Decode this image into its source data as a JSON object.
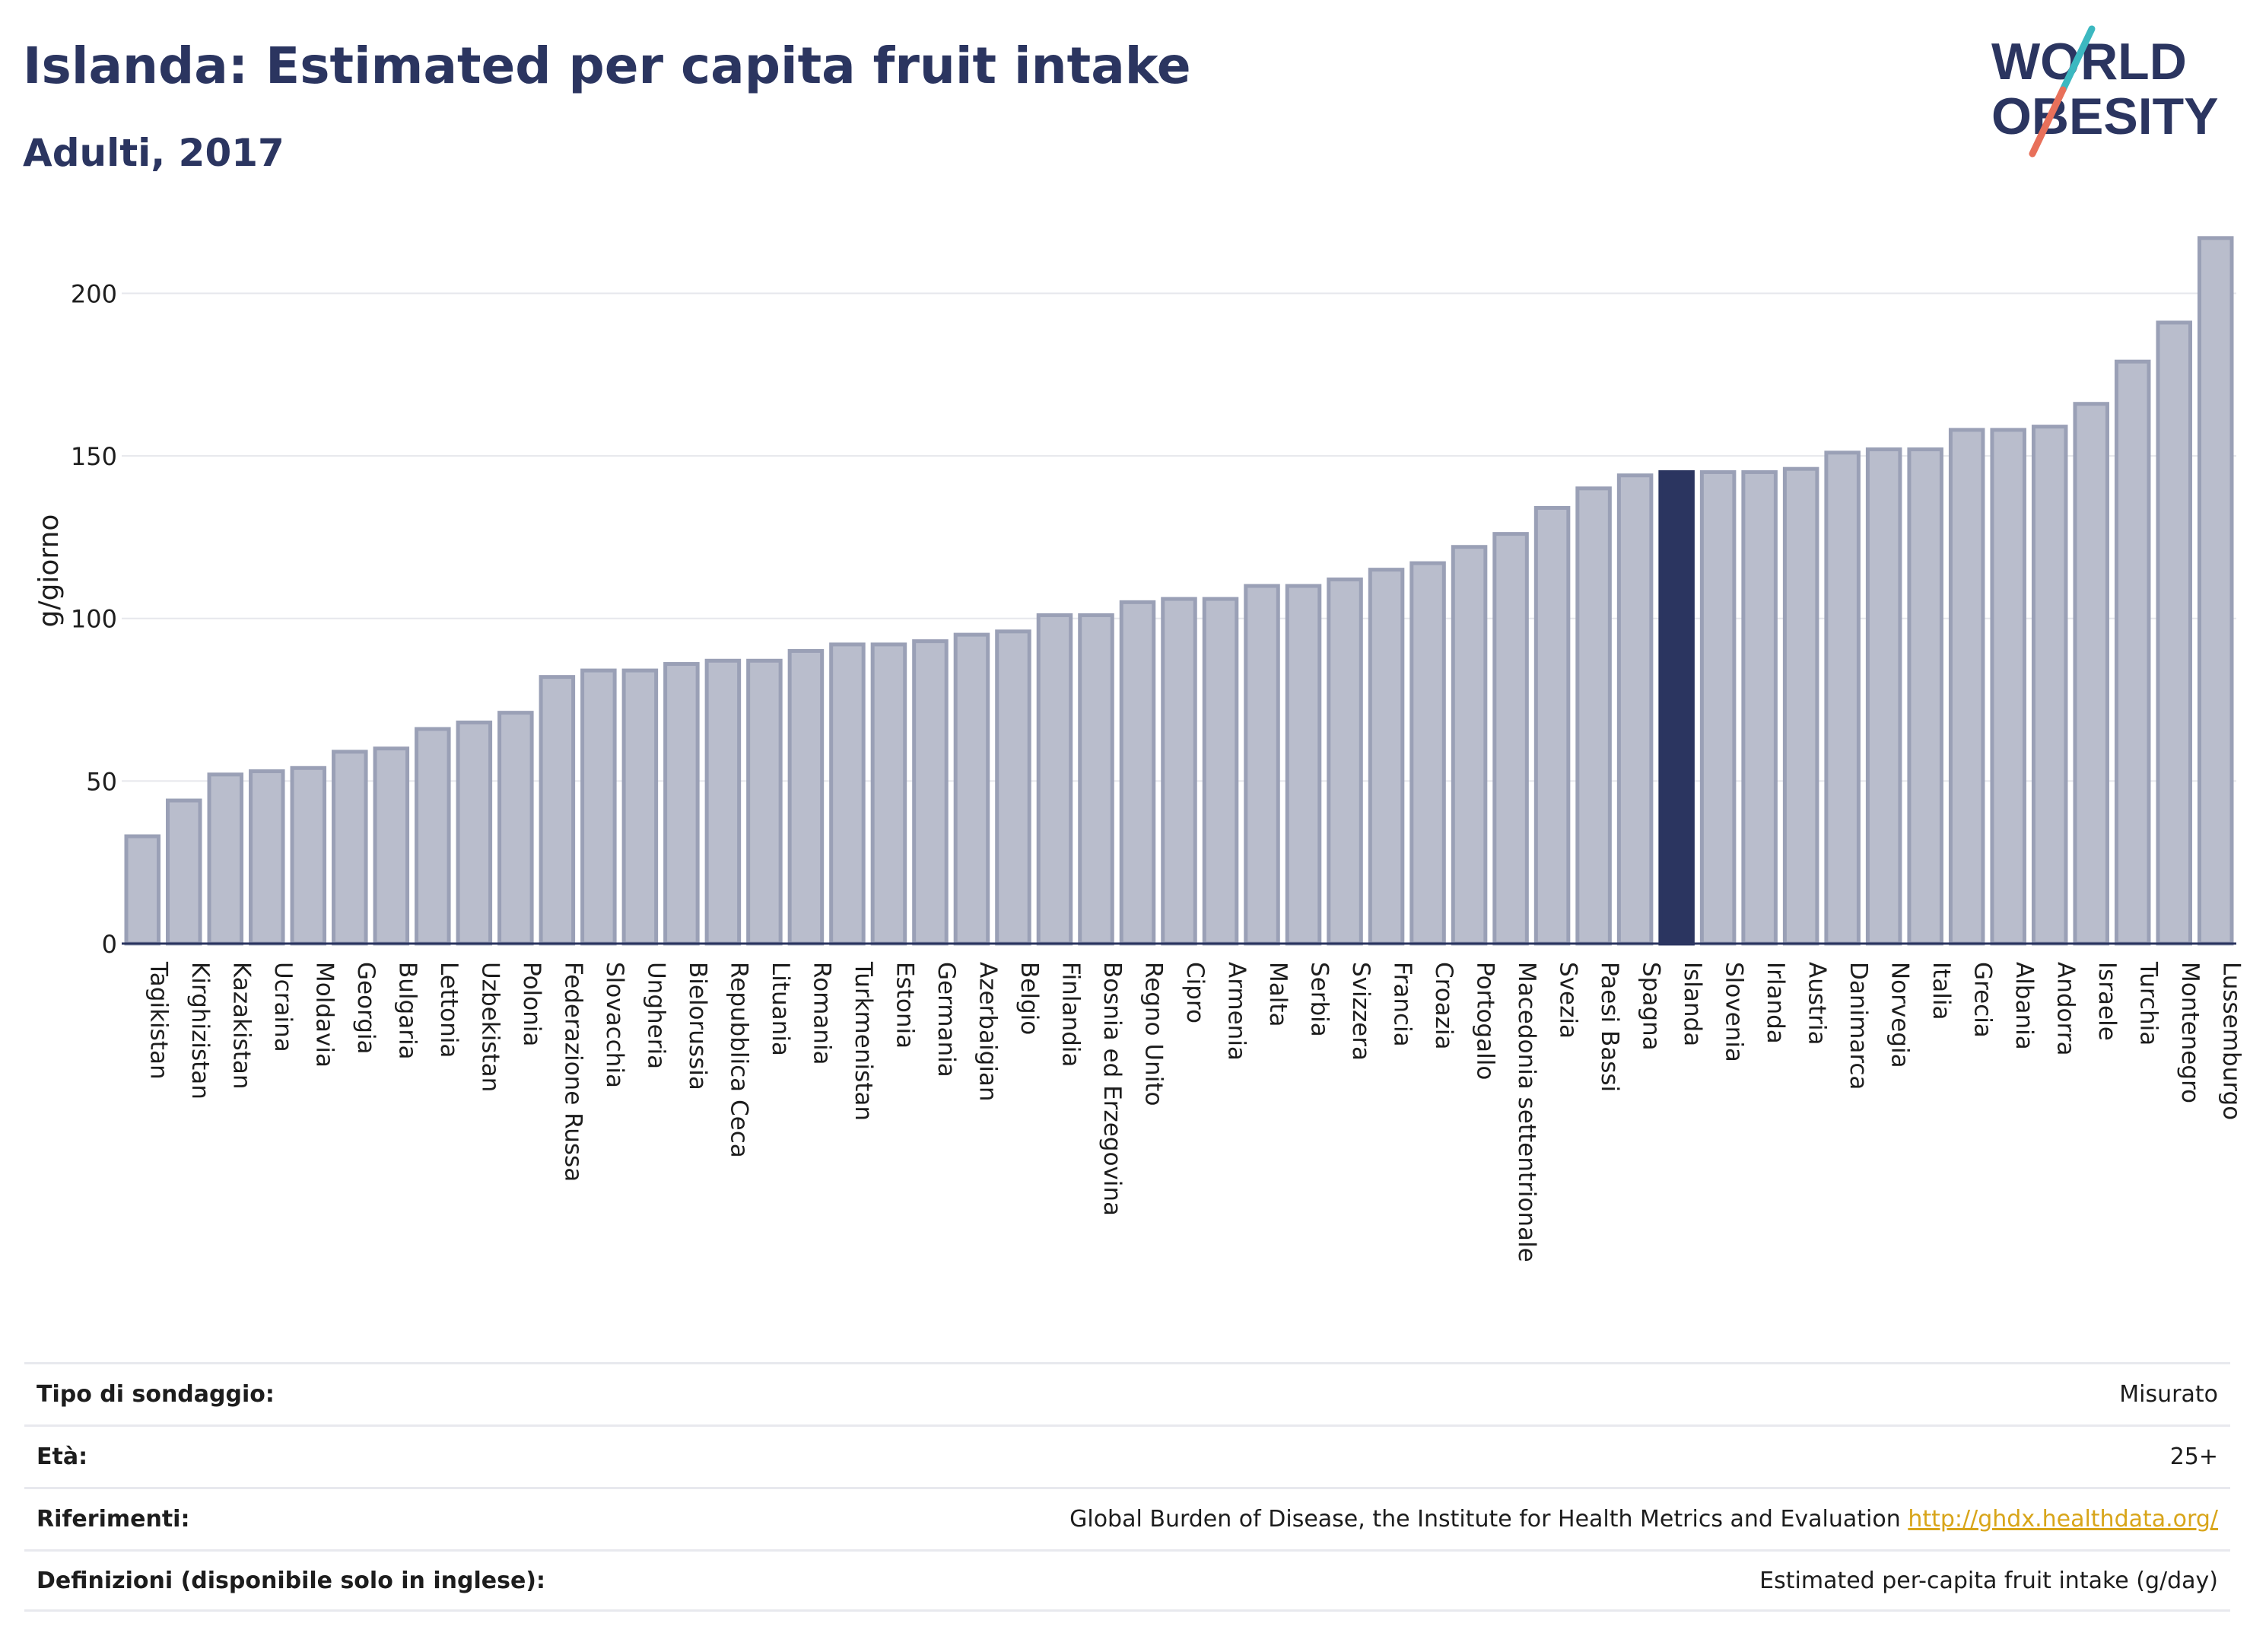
{
  "header": {
    "title": "Islanda: Estimated per capita fruit intake",
    "subtitle": "Adulti, 2017"
  },
  "logo": {
    "line1": "WORLD",
    "line2": "OBESITY",
    "colors": {
      "text": "#2b3560",
      "slash_teal": "#3cb8c0",
      "slash_coral": "#e8705a"
    }
  },
  "colors": {
    "bar_fill": "#b9bdcc",
    "bar_stroke": "#9aa0b6",
    "highlight": "#2b3560",
    "grid": "#e6e7ec",
    "axis": "#2b3560",
    "text": "#1d1d1d"
  },
  "chart_data": {
    "type": "bar",
    "title": "Islanda: Estimated per capita fruit intake",
    "subtitle": "Adulti, 2017",
    "xlabel": "",
    "ylabel": "g/giorno",
    "ylim": [
      0,
      220
    ],
    "yticks": [
      0,
      50,
      100,
      150,
      200
    ],
    "grid": true,
    "highlight": "Islanda",
    "categories": [
      "Tagikistan",
      "Kirghizistan",
      "Kazakistan",
      "Ucraina",
      "Moldavia",
      "Georgia",
      "Bulgaria",
      "Lettonia",
      "Uzbekistan",
      "Polonia",
      "Federazione Russa",
      "Slovacchia",
      "Ungheria",
      "Bielorussia",
      "Repubblica Ceca",
      "Lituania",
      "Romania",
      "Turkmenistan",
      "Estonia",
      "Germania",
      "Azerbaigian",
      "Belgio",
      "Finlandia",
      "Bosnia ed Erzegovina",
      "Regno Unito",
      "Cipro",
      "Armenia",
      "Malta",
      "Serbia",
      "Svizzera",
      "Francia",
      "Croazia",
      "Portogallo",
      "Macedonia settentrionale",
      "Svezia",
      "Paesi Bassi",
      "Spagna",
      "Islanda",
      "Slovenia",
      "Irlanda",
      "Austria",
      "Danimarca",
      "Norvegia",
      "Italia",
      "Grecia",
      "Albania",
      "Andorra",
      "Israele",
      "Turchia",
      "Montenegro",
      "Lussemburgo"
    ],
    "values": [
      33,
      44,
      52,
      53,
      54,
      59,
      60,
      66,
      68,
      71,
      82,
      84,
      84,
      86,
      87,
      87,
      90,
      92,
      92,
      93,
      95,
      96,
      101,
      101,
      105,
      106,
      106,
      110,
      110,
      112,
      115,
      117,
      122,
      126,
      134,
      140,
      144,
      145,
      145,
      145,
      146,
      151,
      152,
      152,
      158,
      158,
      159,
      166,
      179,
      191,
      217
    ]
  },
  "info_table": [
    {
      "label": "Tipo di sondaggio:",
      "value": "Misurato",
      "link": ""
    },
    {
      "label": "Età:",
      "value": "25+",
      "link": ""
    },
    {
      "label": "Riferimenti:",
      "value": "Global Burden of Disease, the Institute for Health Metrics and Evaluation",
      "link": "http://ghdx.healthdata.org/"
    },
    {
      "label": "Definizioni (disponibile solo in inglese):",
      "value": "Estimated per-capita fruit intake (g/day)",
      "link": ""
    }
  ]
}
